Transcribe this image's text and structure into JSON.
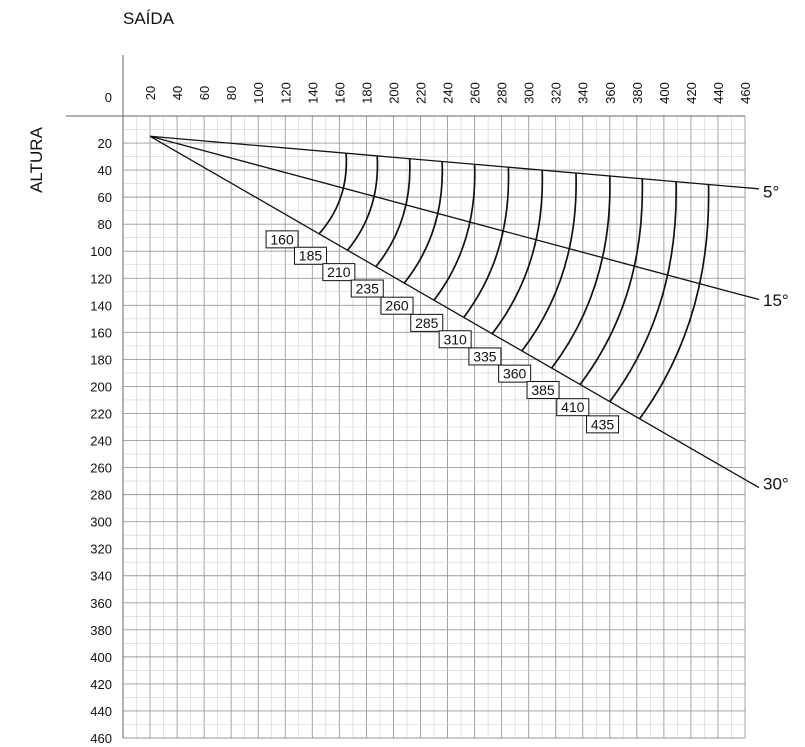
{
  "chart_data": {
    "type": "line",
    "xlabel": "SAÍDA",
    "ylabel": "ALTURA",
    "origin_label": "0",
    "x_ticks": [
      20,
      40,
      60,
      80,
      100,
      120,
      140,
      160,
      180,
      200,
      220,
      240,
      260,
      280,
      300,
      320,
      340,
      360,
      380,
      400,
      420,
      440,
      460
    ],
    "y_ticks": [
      20,
      40,
      60,
      80,
      100,
      120,
      140,
      160,
      180,
      200,
      220,
      240,
      260,
      280,
      300,
      320,
      340,
      360,
      380,
      400,
      420,
      440,
      460
    ],
    "xlim": [
      0,
      460
    ],
    "ylim": [
      0,
      460
    ],
    "y_inverted": true,
    "grid": true,
    "origin": {
      "x": 20,
      "y": 15
    },
    "series": [
      {
        "name": "5°",
        "x": [
          20,
          460
        ],
        "y": [
          15,
          53
        ]
      },
      {
        "name": "15°",
        "x": [
          20,
          460
        ],
        "y": [
          15,
          133
        ]
      },
      {
        "name": "30°",
        "x": [
          20,
          460
        ],
        "y": [
          15,
          269
        ]
      }
    ],
    "throw_distances": [
      {
        "label": "160",
        "x_on_5": 165,
        "x_on_30": 145
      },
      {
        "label": "185",
        "x_on_5": 188,
        "x_on_30": 166
      },
      {
        "label": "210",
        "x_on_5": 212,
        "x_on_30": 187
      },
      {
        "label": "235",
        "x_on_5": 236,
        "x_on_30": 208
      },
      {
        "label": "260",
        "x_on_5": 260,
        "x_on_30": 230
      },
      {
        "label": "285",
        "x_on_5": 285,
        "x_on_30": 252
      },
      {
        "label": "310",
        "x_on_5": 310,
        "x_on_30": 273
      },
      {
        "label": "335",
        "x_on_5": 335,
        "x_on_30": 295
      },
      {
        "label": "360",
        "x_on_5": 360,
        "x_on_30": 317
      },
      {
        "label": "385",
        "x_on_5": 384,
        "x_on_30": 338
      },
      {
        "label": "410",
        "x_on_5": 409,
        "x_on_30": 360
      },
      {
        "label": "435",
        "x_on_5": 433,
        "x_on_30": 382
      }
    ],
    "colors": {
      "line": "#111111",
      "grid_minor": "#cfcfcf",
      "grid_major": "#9a9a9a"
    }
  }
}
